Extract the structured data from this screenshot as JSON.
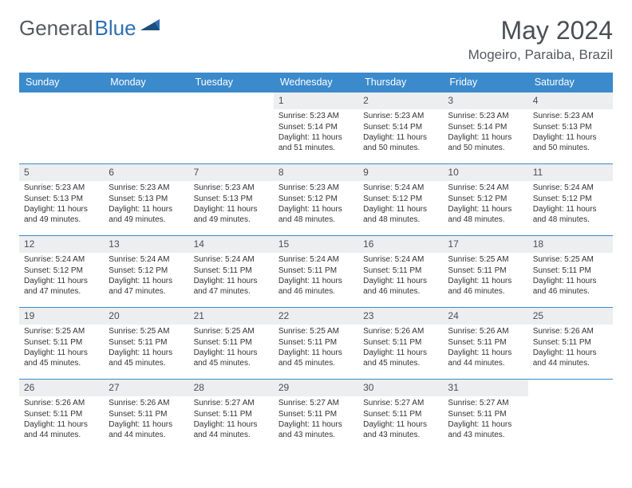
{
  "logo": {
    "text1": "General",
    "text2": "Blue"
  },
  "title": "May 2024",
  "location": "Mogeiro, Paraiba, Brazil",
  "colors": {
    "header_bg": "#3b8acb",
    "header_text": "#ffffff",
    "daynum_bg": "#eceeef",
    "border": "#3b8acb",
    "logo_gray": "#555a60",
    "logo_blue": "#2f6fb3"
  },
  "dayNames": [
    "Sunday",
    "Monday",
    "Tuesday",
    "Wednesday",
    "Thursday",
    "Friday",
    "Saturday"
  ],
  "weeks": [
    [
      {
        "n": "",
        "sr": "",
        "ss": "",
        "dl": ""
      },
      {
        "n": "",
        "sr": "",
        "ss": "",
        "dl": ""
      },
      {
        "n": "",
        "sr": "",
        "ss": "",
        "dl": ""
      },
      {
        "n": "1",
        "sr": "5:23 AM",
        "ss": "5:14 PM",
        "dl": "11 hours and 51 minutes."
      },
      {
        "n": "2",
        "sr": "5:23 AM",
        "ss": "5:14 PM",
        "dl": "11 hours and 50 minutes."
      },
      {
        "n": "3",
        "sr": "5:23 AM",
        "ss": "5:14 PM",
        "dl": "11 hours and 50 minutes."
      },
      {
        "n": "4",
        "sr": "5:23 AM",
        "ss": "5:13 PM",
        "dl": "11 hours and 50 minutes."
      }
    ],
    [
      {
        "n": "5",
        "sr": "5:23 AM",
        "ss": "5:13 PM",
        "dl": "11 hours and 49 minutes."
      },
      {
        "n": "6",
        "sr": "5:23 AM",
        "ss": "5:13 PM",
        "dl": "11 hours and 49 minutes."
      },
      {
        "n": "7",
        "sr": "5:23 AM",
        "ss": "5:13 PM",
        "dl": "11 hours and 49 minutes."
      },
      {
        "n": "8",
        "sr": "5:23 AM",
        "ss": "5:12 PM",
        "dl": "11 hours and 48 minutes."
      },
      {
        "n": "9",
        "sr": "5:24 AM",
        "ss": "5:12 PM",
        "dl": "11 hours and 48 minutes."
      },
      {
        "n": "10",
        "sr": "5:24 AM",
        "ss": "5:12 PM",
        "dl": "11 hours and 48 minutes."
      },
      {
        "n": "11",
        "sr": "5:24 AM",
        "ss": "5:12 PM",
        "dl": "11 hours and 48 minutes."
      }
    ],
    [
      {
        "n": "12",
        "sr": "5:24 AM",
        "ss": "5:12 PM",
        "dl": "11 hours and 47 minutes."
      },
      {
        "n": "13",
        "sr": "5:24 AM",
        "ss": "5:12 PM",
        "dl": "11 hours and 47 minutes."
      },
      {
        "n": "14",
        "sr": "5:24 AM",
        "ss": "5:11 PM",
        "dl": "11 hours and 47 minutes."
      },
      {
        "n": "15",
        "sr": "5:24 AM",
        "ss": "5:11 PM",
        "dl": "11 hours and 46 minutes."
      },
      {
        "n": "16",
        "sr": "5:24 AM",
        "ss": "5:11 PM",
        "dl": "11 hours and 46 minutes."
      },
      {
        "n": "17",
        "sr": "5:25 AM",
        "ss": "5:11 PM",
        "dl": "11 hours and 46 minutes."
      },
      {
        "n": "18",
        "sr": "5:25 AM",
        "ss": "5:11 PM",
        "dl": "11 hours and 46 minutes."
      }
    ],
    [
      {
        "n": "19",
        "sr": "5:25 AM",
        "ss": "5:11 PM",
        "dl": "11 hours and 45 minutes."
      },
      {
        "n": "20",
        "sr": "5:25 AM",
        "ss": "5:11 PM",
        "dl": "11 hours and 45 minutes."
      },
      {
        "n": "21",
        "sr": "5:25 AM",
        "ss": "5:11 PM",
        "dl": "11 hours and 45 minutes."
      },
      {
        "n": "22",
        "sr": "5:25 AM",
        "ss": "5:11 PM",
        "dl": "11 hours and 45 minutes."
      },
      {
        "n": "23",
        "sr": "5:26 AM",
        "ss": "5:11 PM",
        "dl": "11 hours and 45 minutes."
      },
      {
        "n": "24",
        "sr": "5:26 AM",
        "ss": "5:11 PM",
        "dl": "11 hours and 44 minutes."
      },
      {
        "n": "25",
        "sr": "5:26 AM",
        "ss": "5:11 PM",
        "dl": "11 hours and 44 minutes."
      }
    ],
    [
      {
        "n": "26",
        "sr": "5:26 AM",
        "ss": "5:11 PM",
        "dl": "11 hours and 44 minutes."
      },
      {
        "n": "27",
        "sr": "5:26 AM",
        "ss": "5:11 PM",
        "dl": "11 hours and 44 minutes."
      },
      {
        "n": "28",
        "sr": "5:27 AM",
        "ss": "5:11 PM",
        "dl": "11 hours and 44 minutes."
      },
      {
        "n": "29",
        "sr": "5:27 AM",
        "ss": "5:11 PM",
        "dl": "11 hours and 43 minutes."
      },
      {
        "n": "30",
        "sr": "5:27 AM",
        "ss": "5:11 PM",
        "dl": "11 hours and 43 minutes."
      },
      {
        "n": "31",
        "sr": "5:27 AM",
        "ss": "5:11 PM",
        "dl": "11 hours and 43 minutes."
      },
      {
        "n": "",
        "sr": "",
        "ss": "",
        "dl": ""
      }
    ]
  ],
  "labels": {
    "sunrise": "Sunrise:",
    "sunset": "Sunset:",
    "daylight": "Daylight:"
  }
}
